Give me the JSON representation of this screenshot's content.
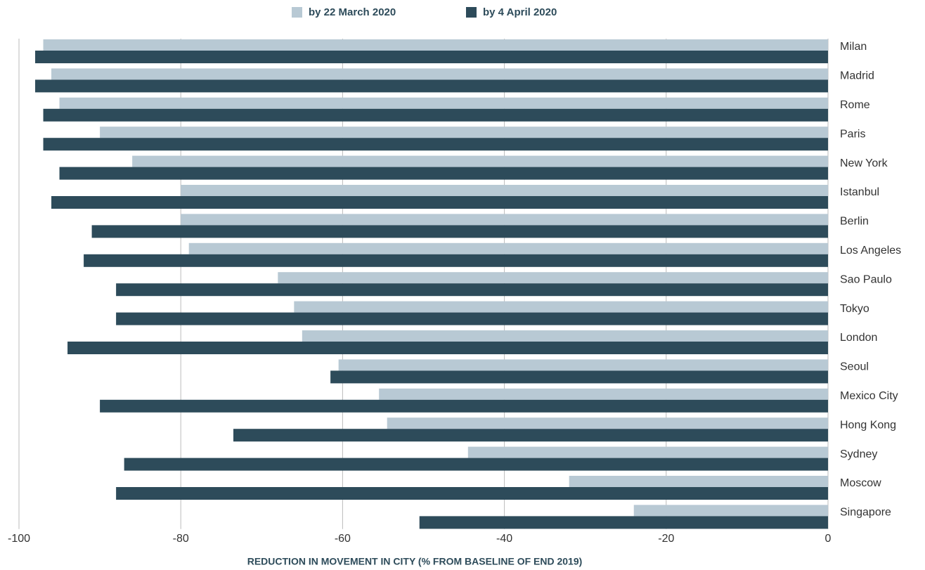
{
  "chart_data": {
    "type": "hbar",
    "xlabel": "REDUCTION IN MOVEMENT IN CITY (% FROM BASELINE OF END 2019)",
    "categories": [
      "Milan",
      "Madrid",
      "Rome",
      "Paris",
      "New York",
      "Istanbul",
      "Berlin",
      "Los Angeles",
      "Sao Paulo",
      "Tokyo",
      "London",
      "Seoul",
      "Mexico City",
      "Hong Kong",
      "Sydney",
      "Moscow",
      "Singapore"
    ],
    "series": [
      {
        "name": "by 22 March 2020",
        "color": "#b8c9d4",
        "values": [
          -97,
          -96,
          -95,
          -90,
          -86,
          -80,
          -80,
          -79,
          -68,
          -66,
          -65,
          -60.5,
          -55.5,
          -54.5,
          -44.5,
          -32,
          -24
        ]
      },
      {
        "name": "by 4 April 2020",
        "color": "#2d4b5a",
        "values": [
          -98,
          -98,
          -97,
          -97,
          -95,
          -96,
          -91,
          -92,
          -88,
          -88,
          -94,
          -61.5,
          -90,
          -73.5,
          -87,
          -88,
          -50.5
        ]
      }
    ],
    "xlim": [
      -100,
      0
    ],
    "xticks": [
      -100,
      -80,
      -60,
      -40,
      -20,
      0
    ],
    "grid": true
  }
}
